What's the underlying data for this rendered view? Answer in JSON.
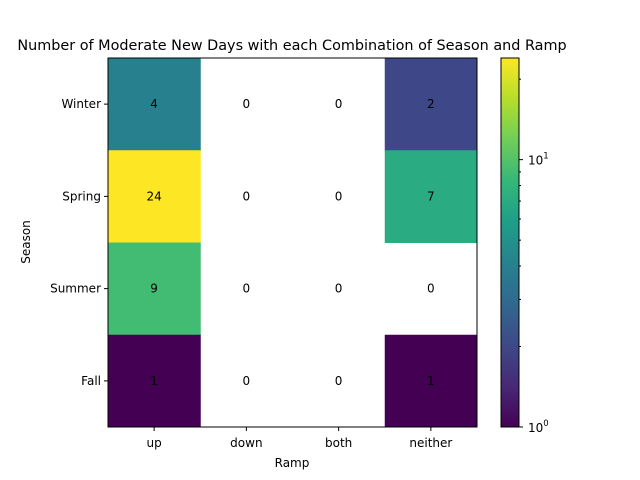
{
  "chart_data": {
    "type": "heatmap",
    "title": "Number of Moderate New Days with each Combination of Season and Ramp",
    "xlabel": "Ramp",
    "ylabel": "Season",
    "x_categories": [
      "up",
      "down",
      "both",
      "neither"
    ],
    "y_categories": [
      "Winter",
      "Spring",
      "Summer",
      "Fall"
    ],
    "values": [
      [
        4,
        0,
        0,
        2
      ],
      [
        24,
        0,
        0,
        7
      ],
      [
        9,
        0,
        0,
        0
      ],
      [
        1,
        0,
        0,
        1
      ]
    ],
    "color_scale": "log",
    "colormap": "viridis",
    "zero_cells": "blank",
    "colorbar": {
      "min": 1,
      "max": 24,
      "major_ticks": [
        {
          "value": 1,
          "base": "10",
          "exp": "0"
        },
        {
          "value": 10,
          "base": "10",
          "exp": "1"
        }
      ],
      "minor_ticks": [
        2,
        3,
        4,
        5,
        6,
        7,
        8,
        9,
        20
      ]
    }
  }
}
